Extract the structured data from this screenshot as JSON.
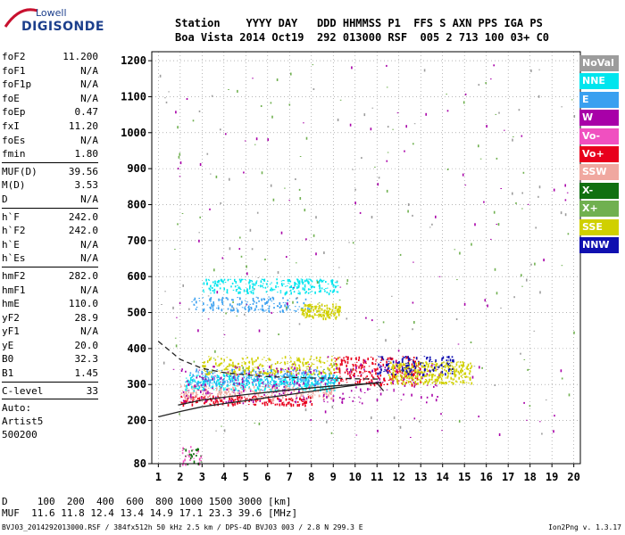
{
  "logo": {
    "brand": "Lowell",
    "product": "DIGISONDE"
  },
  "header": {
    "line1": "Station    YYYY DAY   DDD HHMMSS P1  FFS S AXN PPS IGA PS",
    "line2": "Boa Vista 2014 Oct19  292 013000 RSF  005 2 713 100 03+ C0"
  },
  "params_group1": [
    {
      "label": "foF2",
      "value": "11.200"
    },
    {
      "label": "foF1",
      "value": "N/A"
    },
    {
      "label": "foF1p",
      "value": "N/A"
    },
    {
      "label": "foE",
      "value": "N/A"
    },
    {
      "label": "foEp",
      "value": "0.47"
    },
    {
      "label": "fxI",
      "value": "11.20"
    },
    {
      "label": "foEs",
      "value": "N/A"
    },
    {
      "label": "fmin",
      "value": "1.80"
    }
  ],
  "params_group2": [
    {
      "label": "MUF(D)",
      "value": "39.56"
    },
    {
      "label": "M(D)",
      "value": "3.53"
    },
    {
      "label": "D",
      "value": "N/A"
    }
  ],
  "params_group3": [
    {
      "label": "h`F",
      "value": "242.0"
    },
    {
      "label": "h`F2",
      "value": "242.0"
    },
    {
      "label": "h`E",
      "value": "N/A"
    },
    {
      "label": "h`Es",
      "value": "N/A"
    }
  ],
  "params_group4": [
    {
      "label": "hmF2",
      "value": "282.0"
    },
    {
      "label": "hmF1",
      "value": "N/A"
    },
    {
      "label": "hmE",
      "value": "110.0"
    },
    {
      "label": "yF2",
      "value": "28.9"
    },
    {
      "label": "yF1",
      "value": "N/A"
    },
    {
      "label": "yE",
      "value": "20.0"
    },
    {
      "label": "B0",
      "value": "32.3"
    },
    {
      "label": "B1",
      "value": "1.45"
    }
  ],
  "clevel": {
    "label": "C-level",
    "value": "33"
  },
  "auto": {
    "line1": "Auto:",
    "line2": "Artist5",
    "line3": "500200"
  },
  "legend": [
    {
      "label": "NoVal",
      "color": "#9c9c9c"
    },
    {
      "label": "NNE",
      "color": "#00e5ee"
    },
    {
      "label": "E",
      "color": "#3aa0f0"
    },
    {
      "label": "W",
      "color": "#a800a8"
    },
    {
      "label": "Vo-",
      "color": "#f050c0"
    },
    {
      "label": "Vo+",
      "color": "#e8001c"
    },
    {
      "label": "SSW",
      "color": "#f0a8a0"
    },
    {
      "label": "X-",
      "color": "#107010"
    },
    {
      "label": "X+",
      "color": "#70b050"
    },
    {
      "label": "SSE",
      "color": "#d0d000"
    },
    {
      "label": "NNW",
      "color": "#1010b0"
    }
  ],
  "footer": {
    "line1": "D     100  200  400  600  800 1000 1500 3000 [km]",
    "line2": "MUF  11.6 11.8 12.4 13.4 14.9 17.1 23.3 39.6 [MHz]",
    "file": "BVJ03_2014292013000.RSF / 384fx512h 50 kHz 2.5 km / DPS-4D BVJ03 003 / 2.8 N 299.3 E",
    "version": "Ion2Png v. 1.3.17"
  },
  "chart_data": {
    "type": "scatter",
    "x_ticks": [
      "1",
      "2",
      "3",
      "4",
      "5",
      "6",
      "7",
      "8",
      "9",
      "10",
      "11",
      "12",
      "13",
      "14",
      "15",
      "16",
      "17",
      "18",
      "19",
      "20"
    ],
    "y_ticks": [
      "80",
      "200",
      "300",
      "400",
      "500",
      "600",
      "700",
      "800",
      "900",
      "1000",
      "1100",
      "1200"
    ],
    "xlim": [
      1,
      20
    ],
    "ylim": [
      80,
      1200
    ],
    "grid": "dotted",
    "clusters": [
      {
        "cls": "NNE",
        "x": [
          2.2,
          9.2
        ],
        "y": [
          285,
          330
        ],
        "n": 420
      },
      {
        "cls": "E",
        "x": [
          2.4,
          9.0
        ],
        "y": [
          300,
          345
        ],
        "n": 260
      },
      {
        "cls": "NNE",
        "x": [
          3.0,
          9.2
        ],
        "y": [
          555,
          595
        ],
        "n": 240
      },
      {
        "cls": "E",
        "x": [
          2.5,
          8.0
        ],
        "y": [
          505,
          545
        ],
        "n": 150
      },
      {
        "cls": "SSE",
        "x": [
          7.5,
          9.3
        ],
        "y": [
          485,
          525
        ],
        "n": 150
      },
      {
        "cls": "SSE",
        "x": [
          3.0,
          9.2
        ],
        "y": [
          330,
          380
        ],
        "n": 250
      },
      {
        "cls": "Vo+",
        "x": [
          2.0,
          8.0
        ],
        "y": [
          245,
          270
        ],
        "n": 200
      },
      {
        "cls": "SSW",
        "x": [
          2.0,
          9.0
        ],
        "y": [
          260,
          300
        ],
        "n": 220
      },
      {
        "cls": "Vo+",
        "x": [
          9.0,
          13.0
        ],
        "y": [
          300,
          380
        ],
        "n": 260
      },
      {
        "cls": "W",
        "x": [
          2.0,
          14.0
        ],
        "y": [
          250,
          360
        ],
        "n": 260
      },
      {
        "cls": "SSE",
        "x": [
          11.5,
          15.3
        ],
        "y": [
          305,
          365
        ],
        "n": 330
      },
      {
        "cls": "NNW",
        "x": [
          11.0,
          14.5
        ],
        "y": [
          330,
          380
        ],
        "n": 130
      },
      {
        "cls": "X+",
        "x": [
          1.5,
          20.0
        ],
        "y": [
          150,
          1200
        ],
        "n": 110
      },
      {
        "cls": "W",
        "x": [
          1.5,
          20.0
        ],
        "y": [
          150,
          1200
        ],
        "n": 110
      },
      {
        "cls": "NoVal",
        "x": [
          1.0,
          20.0
        ],
        "y": [
          150,
          1200
        ],
        "n": 100
      },
      {
        "cls": "Vo-",
        "x": [
          2.0,
          3.0
        ],
        "y": [
          80,
          130
        ],
        "n": 30
      },
      {
        "cls": "X-",
        "x": [
          2.0,
          3.0
        ],
        "y": [
          80,
          130
        ],
        "n": 20
      }
    ],
    "profile_lines": [
      {
        "style": "dashed",
        "points": [
          [
            1.0,
            420
          ],
          [
            2.0,
            370
          ],
          [
            3.0,
            345
          ],
          [
            4.0,
            333
          ],
          [
            5.0,
            327
          ],
          [
            6.0,
            322
          ],
          [
            7.0,
            320
          ],
          [
            8.0,
            318
          ],
          [
            9.0,
            318
          ],
          [
            10.0,
            316
          ],
          [
            11.2,
            315
          ]
        ]
      },
      {
        "style": "solid",
        "points": [
          [
            1.0,
            210
          ],
          [
            2.0,
            225
          ],
          [
            3.0,
            238
          ],
          [
            4.0,
            247
          ],
          [
            5.0,
            255
          ],
          [
            6.0,
            264
          ],
          [
            7.0,
            272
          ],
          [
            8.0,
            281
          ],
          [
            9.0,
            290
          ],
          [
            10.0,
            298
          ],
          [
            11.0,
            305
          ],
          [
            11.2,
            306
          ]
        ]
      },
      {
        "style": "solid",
        "points": [
          [
            1.9,
            243
          ],
          [
            3.0,
            257
          ],
          [
            5.0,
            272
          ],
          [
            7.0,
            285
          ],
          [
            9.0,
            296
          ],
          [
            10.0,
            300
          ],
          [
            11.0,
            304
          ],
          [
            11.3,
            282
          ]
        ]
      }
    ]
  }
}
